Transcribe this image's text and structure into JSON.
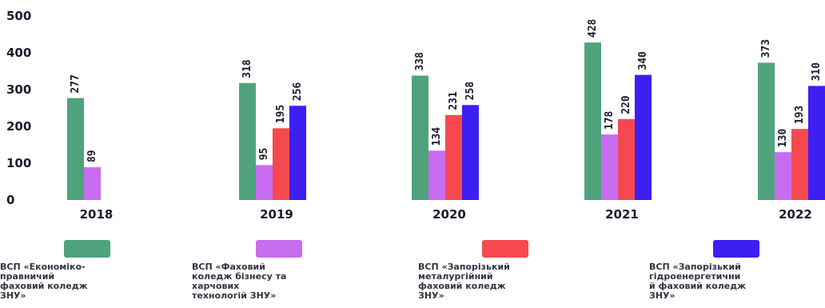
{
  "chart_data": {
    "type": "bar",
    "categories": [
      "2018",
      "2019",
      "2020",
      "2021",
      "2022"
    ],
    "ylim": [
      0,
      500
    ],
    "yticks": [
      0,
      100,
      200,
      300,
      400,
      500
    ],
    "series": [
      {
        "name": "ВСП «Економіко-\nправничий\nфаховий коледж\nЗНУ»",
        "color": "#4fa37c",
        "values": [
          277,
          318,
          338,
          428,
          373
        ]
      },
      {
        "name": "ВСП «Фаховий\nколедж бізнесу та\nхарчових\nтехнологій ЗНУ»",
        "color": "#c86cf0",
        "values": [
          89,
          95,
          134,
          178,
          130
        ]
      },
      {
        "name": "ВСП «Запорізький\nметалургійний\nфаховий коледж\nЗНУ»",
        "color": "#f5494f",
        "values": [
          null,
          195,
          231,
          220,
          193
        ]
      },
      {
        "name": "ВСП «Запорізький\nгідроенергетични\nй фаховий коледж\nЗНУ»",
        "color": "#3e1ff2",
        "values": [
          null,
          256,
          258,
          340,
          310
        ]
      }
    ]
  }
}
